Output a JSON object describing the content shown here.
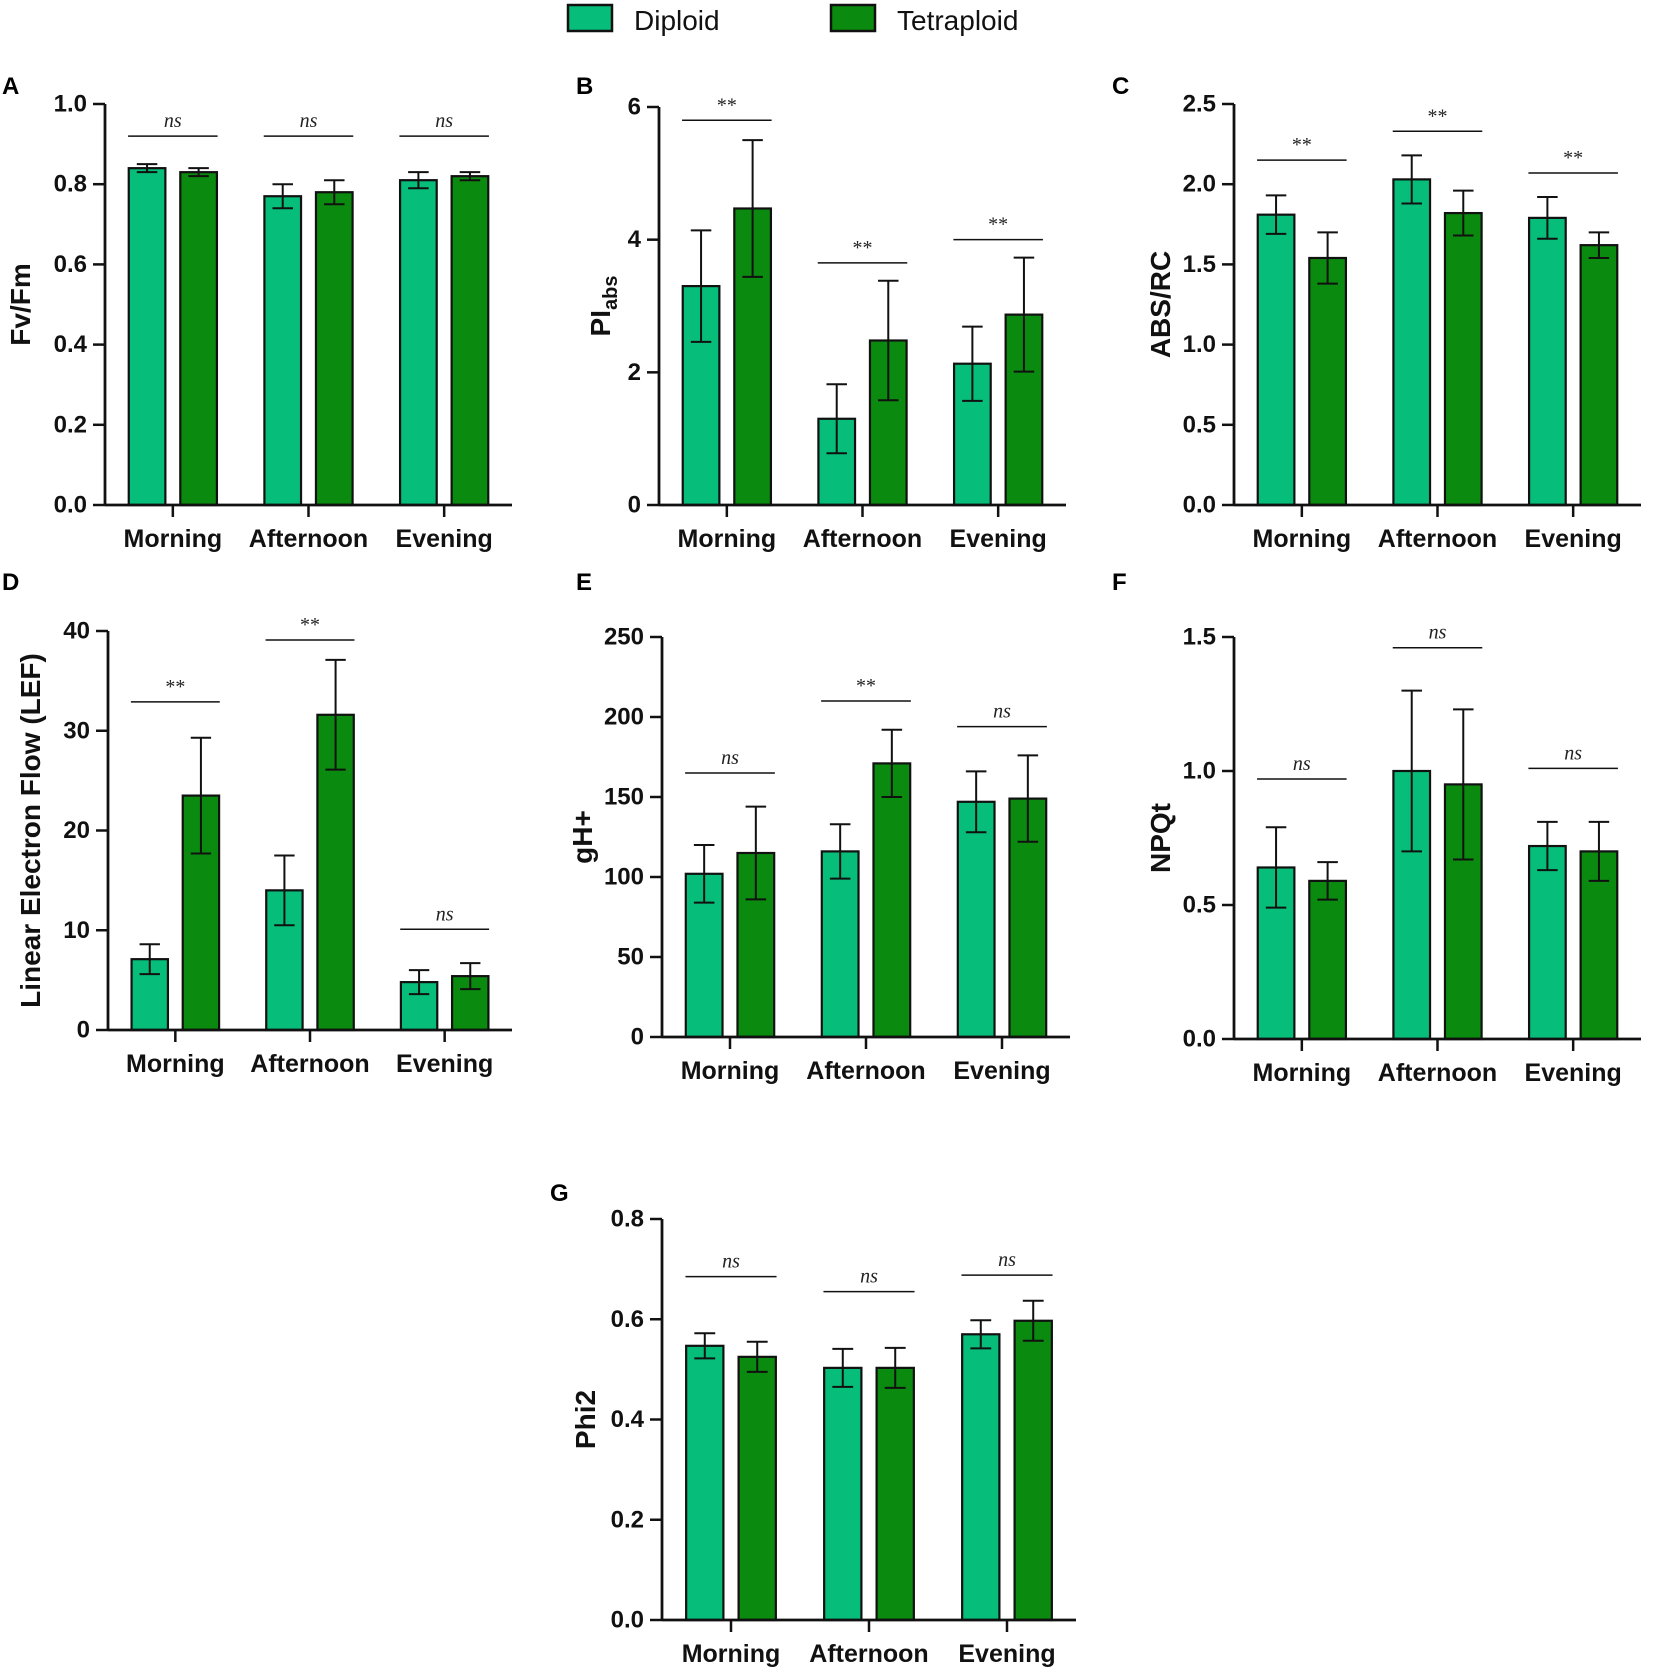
{
  "colors": {
    "diploid": "#06be7a",
    "tetraploid": "#0a8a0e",
    "axis": "#111111"
  },
  "legend": {
    "entries": [
      {
        "name": "Diploid",
        "color_key": "diploid"
      },
      {
        "name": "Tetraploid",
        "color_key": "tetraploid"
      }
    ]
  },
  "chart_data": [
    {
      "panel": "A",
      "type": "bar",
      "ylabel": "Fv/Fm",
      "ylabel_sub": "",
      "ylim": [
        0,
        1.0
      ],
      "yticks": [
        0,
        0.2,
        0.4,
        0.6,
        0.8,
        1.0
      ],
      "tick_decimals": 1,
      "categories": [
        "Morning",
        "Afternoon",
        "Evening"
      ],
      "series": [
        {
          "name": "Diploid",
          "values": [
            0.84,
            0.77,
            0.81
          ],
          "errors": [
            0.01,
            0.03,
            0.02
          ]
        },
        {
          "name": "Tetraploid",
          "values": [
            0.83,
            0.78,
            0.82
          ],
          "errors": [
            0.01,
            0.03,
            0.01
          ]
        }
      ],
      "significance": [
        {
          "label": "ns",
          "y": 0.92
        },
        {
          "label": "ns",
          "y": 0.92
        },
        {
          "label": "ns",
          "y": 0.92
        }
      ]
    },
    {
      "panel": "B",
      "type": "bar",
      "ylabel": "PI",
      "ylabel_sub": "abs",
      "ylim": [
        0,
        6
      ],
      "yticks": [
        0,
        2,
        4,
        6
      ],
      "tick_decimals": 0,
      "categories": [
        "Morning",
        "Afternoon",
        "Evening"
      ],
      "series": [
        {
          "name": "Diploid",
          "values": [
            3.3,
            1.3,
            2.13
          ],
          "errors": [
            0.84,
            0.52,
            0.56
          ]
        },
        {
          "name": "Tetraploid",
          "values": [
            4.47,
            2.48,
            2.87
          ],
          "errors": [
            1.03,
            0.9,
            0.86
          ]
        }
      ],
      "significance": [
        {
          "label": "**",
          "y": 5.8
        },
        {
          "label": "**",
          "y": 3.65
        },
        {
          "label": "**",
          "y": 4.0
        }
      ]
    },
    {
      "panel": "C",
      "type": "bar",
      "ylabel": "ABS/RC",
      "ylabel_sub": "",
      "ylim": [
        0,
        2.5
      ],
      "yticks": [
        0,
        0.5,
        1.0,
        1.5,
        2.0,
        2.5
      ],
      "tick_decimals": 1,
      "categories": [
        "Morning",
        "Afternoon",
        "Evening"
      ],
      "series": [
        {
          "name": "Diploid",
          "values": [
            1.81,
            2.03,
            1.79
          ],
          "errors": [
            0.12,
            0.15,
            0.13
          ]
        },
        {
          "name": "Tetraploid",
          "values": [
            1.54,
            1.82,
            1.62
          ],
          "errors": [
            0.16,
            0.14,
            0.08
          ]
        }
      ],
      "significance": [
        {
          "label": "**",
          "y": 2.15
        },
        {
          "label": "**",
          "y": 2.33
        },
        {
          "label": "**",
          "y": 2.07
        }
      ]
    },
    {
      "panel": "D",
      "type": "bar",
      "ylabel": "Linear Electron Flow (LEF)",
      "ylabel_sub": "",
      "ylim": [
        0,
        40
      ],
      "yticks": [
        0,
        10,
        20,
        30,
        40
      ],
      "tick_decimals": 0,
      "categories": [
        "Morning",
        "Afternoon",
        "Evening"
      ],
      "series": [
        {
          "name": "Diploid",
          "values": [
            7.1,
            14.0,
            4.8
          ],
          "errors": [
            1.5,
            3.5,
            1.2
          ]
        },
        {
          "name": "Tetraploid",
          "values": [
            23.5,
            31.6,
            5.4
          ],
          "errors": [
            5.8,
            5.5,
            1.3
          ]
        }
      ],
      "significance": [
        {
          "label": "**",
          "y": 32.9
        },
        {
          "label": "**",
          "y": 39.1
        },
        {
          "label": "ns",
          "y": 10.1
        }
      ]
    },
    {
      "panel": "E",
      "type": "bar",
      "ylabel": "gH+",
      "ylabel_sub": "",
      "ylim": [
        0,
        250
      ],
      "yticks": [
        0,
        50,
        100,
        150,
        200,
        250
      ],
      "tick_decimals": 0,
      "categories": [
        "Morning",
        "Afternoon",
        "Evening"
      ],
      "series": [
        {
          "name": "Diploid",
          "values": [
            102,
            116,
            147
          ],
          "errors": [
            18,
            17,
            19
          ]
        },
        {
          "name": "Tetraploid",
          "values": [
            115,
            171,
            149
          ],
          "errors": [
            29,
            21,
            27
          ]
        }
      ],
      "significance": [
        {
          "label": "ns",
          "y": 165
        },
        {
          "label": "**",
          "y": 210
        },
        {
          "label": "ns",
          "y": 194
        }
      ]
    },
    {
      "panel": "F",
      "type": "bar",
      "ylabel": "NPQt",
      "ylabel_sub": "",
      "ylim": [
        0,
        1.5
      ],
      "yticks": [
        0,
        0.5,
        1.0,
        1.5
      ],
      "tick_decimals": 1,
      "categories": [
        "Morning",
        "Afternoon",
        "Evening"
      ],
      "series": [
        {
          "name": "Diploid",
          "values": [
            0.64,
            1.0,
            0.72
          ],
          "errors": [
            0.15,
            0.3,
            0.09
          ]
        },
        {
          "name": "Tetraploid",
          "values": [
            0.59,
            0.95,
            0.7
          ],
          "errors": [
            0.07,
            0.28,
            0.11
          ]
        }
      ],
      "significance": [
        {
          "label": "ns",
          "y": 0.97
        },
        {
          "label": "ns",
          "y": 1.46
        },
        {
          "label": "ns",
          "y": 1.01
        }
      ]
    },
    {
      "panel": "G",
      "type": "bar",
      "ylabel": "Phi2",
      "ylabel_sub": "",
      "ylim": [
        0,
        0.8
      ],
      "yticks": [
        0,
        0.2,
        0.4,
        0.6,
        0.8
      ],
      "tick_decimals": 1,
      "categories": [
        "Morning",
        "Afternoon",
        "Evening"
      ],
      "series": [
        {
          "name": "Diploid",
          "values": [
            0.547,
            0.503,
            0.57
          ],
          "errors": [
            0.025,
            0.038,
            0.028
          ]
        },
        {
          "name": "Tetraploid",
          "values": [
            0.525,
            0.503,
            0.597
          ],
          "errors": [
            0.03,
            0.04,
            0.04
          ]
        }
      ],
      "significance": [
        {
          "label": "ns",
          "y": 0.685
        },
        {
          "label": "ns",
          "y": 0.655
        },
        {
          "label": "ns",
          "y": 0.688
        }
      ]
    }
  ]
}
